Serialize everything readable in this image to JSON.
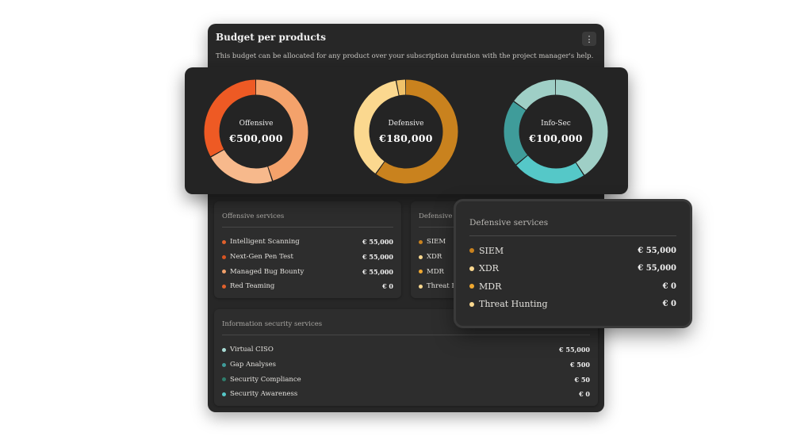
{
  "card": {
    "title": "Budget per products",
    "menu_icon": "⋮",
    "description": "This budget can be allocated for any product over your subscription duration with the project manager's help."
  },
  "donuts": [
    {
      "label": "Offensive",
      "value": "€500,000",
      "segments": [
        {
          "fraction": 0.45,
          "color": "#f4a26b"
        },
        {
          "fraction": 0.22,
          "color": "#f7b98c"
        },
        {
          "fraction": 0.33,
          "color": "#ee5a24"
        }
      ]
    },
    {
      "label": "Defensive",
      "value": "€180,000",
      "segments": [
        {
          "fraction": 0.6,
          "color": "#c9821e"
        },
        {
          "fraction": 0.37,
          "color": "#fbd88f"
        },
        {
          "fraction": 0.03,
          "color": "#f0c26a"
        }
      ]
    },
    {
      "label": "Info-Sec",
      "value": "€100,000",
      "segments": [
        {
          "fraction": 0.41,
          "color": "#9fcfc6"
        },
        {
          "fraction": 0.23,
          "color": "#55c8c8"
        },
        {
          "fraction": 0.21,
          "color": "#3f9c9a"
        },
        {
          "fraction": 0.15,
          "color": "#9fcfc6"
        }
      ]
    }
  ],
  "offensive_services": {
    "title": "Offensive services",
    "items": [
      {
        "name": "Intelligent Scanning",
        "value": "€ 55,000",
        "color": "#e0602c"
      },
      {
        "name": "Next-Gen Pen Test",
        "value": "€ 55,000",
        "color": "#d75422"
      },
      {
        "name": "Managed Bug Bounty",
        "value": "€ 55,000",
        "color": "#f2a06a"
      },
      {
        "name": "Red Teaming",
        "value": "€ 0",
        "color": "#e0602c"
      }
    ]
  },
  "defensive_services_bg": {
    "title": "Defensive services",
    "items": [
      {
        "name": "SIEM",
        "color": "#c9821e"
      },
      {
        "name": "XDR",
        "color": "#fbd88f"
      },
      {
        "name": "MDR",
        "color": "#f0a830"
      },
      {
        "name": "Threat Hunting",
        "color": "#fbd88f"
      }
    ]
  },
  "infosec_services": {
    "title": "Information security services",
    "items": [
      {
        "name": "Virtual CISO",
        "value": "€ 55,000",
        "color": "#a9dcd6"
      },
      {
        "name": "Gap Analyses",
        "value": "€ 500",
        "color": "#3f9c9a"
      },
      {
        "name": "Security Compliance",
        "value": "€ 50",
        "color": "#2f7d6c"
      },
      {
        "name": "Security Awareness",
        "value": "€ 0",
        "color": "#55c8c8"
      }
    ]
  },
  "popup": {
    "title": "Defensive services",
    "items": [
      {
        "name": "SIEM",
        "value": "€ 55,000",
        "color": "#c9821e"
      },
      {
        "name": "XDR",
        "value": "€ 55,000",
        "color": "#fbd88f"
      },
      {
        "name": "MDR",
        "value": "€ 0",
        "color": "#f0a830"
      },
      {
        "name": "Threat Hunting",
        "value": "€ 0",
        "color": "#fbd88f"
      }
    ]
  }
}
